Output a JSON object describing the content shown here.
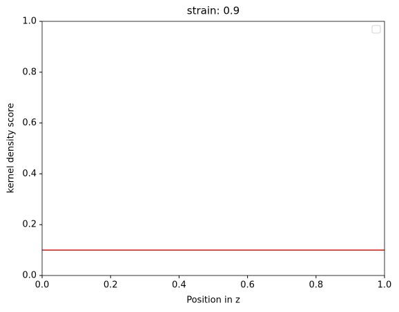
{
  "chart_data": {
    "type": "line",
    "title": "strain: 0.9",
    "xlabel": "Position in z",
    "ylabel": "kernel density score",
    "x": [
      0,
      1
    ],
    "series": [
      {
        "color": "#ff0000",
        "values": [
          0.1,
          0.1
        ]
      }
    ],
    "xlim": [
      0,
      1
    ],
    "ylim": [
      0,
      1
    ],
    "xticks": [
      {
        "value": 0,
        "label": "0.0"
      },
      0.2,
      0.4,
      0.6,
      0.8,
      {
        "value": 1,
        "label": "1.0"
      }
    ],
    "yticks": [
      {
        "value": 0,
        "label": "0.0"
      },
      0.2,
      0.4,
      0.6,
      0.8,
      {
        "value": 1,
        "label": "1.0"
      }
    ],
    "grid": false,
    "legend": "upper right"
  }
}
